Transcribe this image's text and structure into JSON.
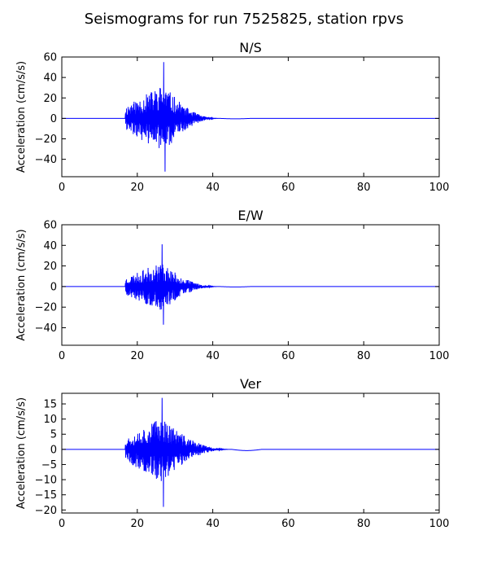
{
  "figure": {
    "title": "Seismograms for run 7525825, station rpvs",
    "line_color": "#0000ff"
  },
  "chart_data": [
    {
      "type": "line",
      "title": "N/S",
      "xlabel": "",
      "ylabel": "Acceleration (cm/s/s)",
      "xlim": [
        0,
        100
      ],
      "ylim": [
        -57,
        60
      ],
      "xticks": [
        0,
        20,
        40,
        60,
        80,
        100
      ],
      "yticks": [
        60,
        40,
        20,
        0,
        -20,
        -40
      ],
      "grid": false,
      "signal": {
        "onset": 16.8,
        "peak_time": 27.0,
        "coda_end": 42.0,
        "peak_pos": 55,
        "peak_neg": -52,
        "typical_amp": 28,
        "seed": 11
      }
    },
    {
      "type": "line",
      "title": "E/W",
      "xlabel": "",
      "ylabel": "Acceleration (cm/s/s)",
      "xlim": [
        0,
        100
      ],
      "ylim": [
        -57,
        60
      ],
      "xticks": [
        0,
        20,
        40,
        60,
        80,
        100
      ],
      "yticks": [
        60,
        40,
        20,
        0,
        -20,
        -40
      ],
      "grid": false,
      "signal": {
        "onset": 16.8,
        "peak_time": 26.5,
        "coda_end": 42.0,
        "peak_pos": 41,
        "peak_neg": -37,
        "typical_amp": 20,
        "seed": 23
      }
    },
    {
      "type": "line",
      "title": "Ver",
      "xlabel": "",
      "ylabel": "Acceleration (cm/s/s)",
      "xlim": [
        0,
        100
      ],
      "ylim": [
        -21,
        18.5
      ],
      "xticks": [
        0,
        20,
        40,
        60,
        80,
        100
      ],
      "yticks": [
        15,
        10,
        5,
        0,
        -5,
        -10,
        -15,
        -20
      ],
      "grid": false,
      "signal": {
        "onset": 16.8,
        "peak_time": 26.5,
        "coda_end": 45.0,
        "peak_pos": 17,
        "peak_neg": -19,
        "typical_amp": 9,
        "seed": 37
      }
    }
  ]
}
